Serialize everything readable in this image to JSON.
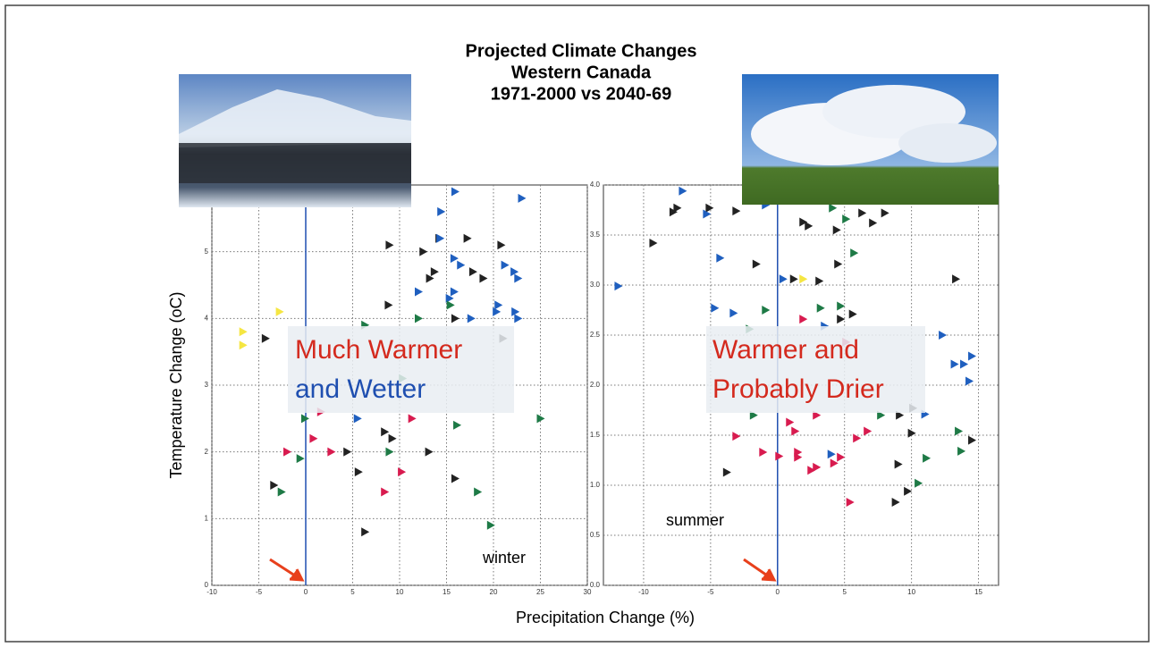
{
  "title": [
    "Projected Climate Changes",
    "Western Canada",
    "1971-2000 vs 2040-69"
  ],
  "xlabel": "Precipitation Change (%)",
  "ylabel": "Temperature Change (oC)",
  "chart_data": [
    {
      "type": "scatter",
      "season": "winter",
      "annotations": [
        "Much Warmer",
        "and Wetter"
      ],
      "xlim": [
        -10,
        30
      ],
      "ylim": [
        0,
        6
      ],
      "xticks": [
        -10,
        -5,
        0,
        5,
        10,
        15,
        20,
        25,
        30
      ],
      "yticks": [
        0,
        1,
        2,
        3,
        4,
        5
      ],
      "grid": true,
      "vline": 0,
      "series": [
        {
          "color": "#222222",
          "x": [
            8.9,
            13.2,
            13.7,
            12.5,
            14.2,
            17.2,
            17.8,
            18.9,
            8.8,
            5.6,
            9.2,
            13.1,
            15.9,
            -3.4,
            -4.3,
            6.3,
            4.4,
            8.4,
            15.9,
            20.8,
            21.0
          ],
          "values": [
            5.1,
            4.6,
            4.7,
            5.0,
            5.2,
            5.2,
            4.7,
            4.6,
            4.2,
            1.7,
            2.2,
            2.0,
            1.6,
            1.5,
            3.7,
            0.8,
            2.0,
            2.3,
            4.0,
            5.1,
            3.7
          ]
        },
        {
          "color": "#1f5fbf",
          "x": [
            15.9,
            14.4,
            14.3,
            15.8,
            16.5,
            23.0,
            22.6,
            21.2,
            12.0,
            15.3,
            15.8,
            20.5,
            22.3,
            22.6,
            20.3,
            17.6,
            22.2,
            5.5
          ],
          "values": [
            5.9,
            5.6,
            5.2,
            4.9,
            4.8,
            5.8,
            4.6,
            4.8,
            4.4,
            4.3,
            4.4,
            4.2,
            4.1,
            4.0,
            4.1,
            4.0,
            4.7,
            2.5
          ]
        },
        {
          "color": "#1e7a46",
          "x": [
            6.3,
            12.0,
            15.4,
            -0.1,
            -0.6,
            -2.6,
            8.9,
            16.1,
            18.3,
            19.7,
            25.0,
            10.3
          ],
          "values": [
            3.9,
            4.0,
            4.2,
            2.5,
            1.9,
            1.4,
            2.0,
            2.4,
            1.4,
            0.9,
            2.5,
            3.1
          ]
        },
        {
          "color": "#d81b4f",
          "x": [
            -2.0,
            0.8,
            2.7,
            8.4,
            10.2,
            11.3,
            1.6
          ],
          "values": [
            2.0,
            2.2,
            2.0,
            1.4,
            1.7,
            2.5,
            2.6
          ]
        },
        {
          "color": "#f5e642",
          "x": [
            -6.7,
            -6.7,
            -2.8
          ],
          "values": [
            3.8,
            3.6,
            4.1
          ]
        }
      ]
    },
    {
      "type": "scatter",
      "season": "summer",
      "annotations": [
        "Warmer and",
        "Probably Drier"
      ],
      "xlim": [
        -13,
        16.5
      ],
      "ylim": [
        0,
        4
      ],
      "xticks": [
        -10,
        -5,
        0,
        5,
        10,
        15
      ],
      "yticks": [
        {
          "value": 0,
          "label": "0.0"
        },
        {
          "value": 0.5,
          "label": "0.5"
        },
        {
          "value": 1,
          "label": "1.0"
        },
        {
          "value": 1.5,
          "label": "1.5"
        },
        {
          "value": 2,
          "label": "2.0"
        },
        {
          "value": 2.5,
          "label": "2.5"
        },
        {
          "value": 3,
          "label": "3.0"
        },
        {
          "value": 3.5,
          "label": "3.5"
        },
        {
          "value": 4,
          "label": "4.0"
        }
      ],
      "grid": true,
      "vline": 0,
      "series": [
        {
          "color": "#222222",
          "x": [
            -9.3,
            -7.8,
            -7.5,
            -5.1,
            -3.1,
            1.9,
            2.3,
            4.4,
            4.5,
            6.3,
            7.1,
            8.0,
            -1.6,
            1.2,
            3.1,
            5.6,
            13.3,
            9.1,
            10.0,
            9.0,
            9.7,
            8.8,
            14.5,
            -3.8,
            4.7,
            10.1
          ],
          "values": [
            3.42,
            3.73,
            3.77,
            3.77,
            3.74,
            3.63,
            3.59,
            3.55,
            3.21,
            3.72,
            3.62,
            3.72,
            3.21,
            3.06,
            3.04,
            2.71,
            3.06,
            1.7,
            1.52,
            1.21,
            0.94,
            0.83,
            1.45,
            1.13,
            2.66,
            1.77
          ]
        },
        {
          "color": "#1f5fbf",
          "x": [
            -11.9,
            -7.1,
            -5.3,
            -4.3,
            -0.9,
            -4.7,
            -3.3,
            3.5,
            13.2,
            13.9,
            14.5,
            14.3,
            11.0,
            4.0,
            12.3,
            0.4
          ],
          "values": [
            2.99,
            3.94,
            3.71,
            3.27,
            3.8,
            2.77,
            2.72,
            2.59,
            2.21,
            2.21,
            2.29,
            2.04,
            1.71,
            1.31,
            2.5,
            3.06
          ]
        },
        {
          "color": "#1e7a46",
          "x": [
            4.1,
            5.1,
            5.7,
            -0.9,
            3.2,
            4.7,
            -1.8,
            7.7,
            11.1,
            10.5,
            13.5,
            13.7,
            -2.1
          ],
          "values": [
            3.77,
            3.66,
            3.32,
            2.75,
            2.77,
            2.79,
            1.7,
            1.7,
            1.27,
            1.02,
            1.54,
            1.34,
            2.56
          ]
        },
        {
          "color": "#d81b4f",
          "x": [
            -3.1,
            -1.1,
            0.1,
            0.9,
            1.3,
            1.5,
            1.5,
            2.9,
            2.5,
            2.9,
            4.2,
            4.7,
            5.4,
            5.9,
            6.7,
            1.9,
            5.1
          ],
          "values": [
            1.49,
            1.33,
            1.29,
            1.63,
            1.54,
            1.33,
            1.28,
            1.7,
            1.15,
            1.18,
            1.22,
            1.28,
            0.83,
            1.47,
            1.54,
            2.66,
            2.43
          ]
        },
        {
          "color": "#f5e642",
          "x": [
            1.9
          ],
          "values": [
            3.06
          ]
        }
      ]
    }
  ]
}
